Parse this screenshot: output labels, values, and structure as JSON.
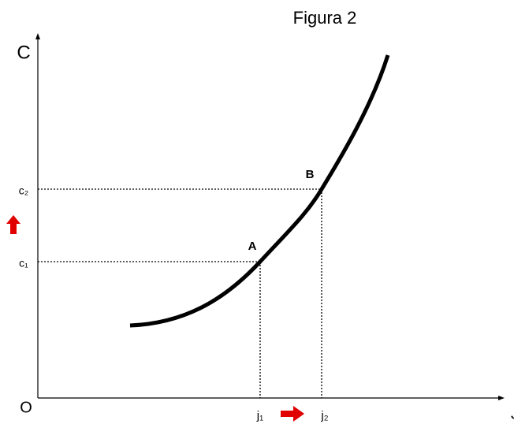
{
  "title": "Figura 2",
  "axes": {
    "y_label": "C",
    "x_label": "J",
    "origin": "O"
  },
  "points": [
    {
      "label": "A"
    },
    {
      "label": "B"
    }
  ],
  "y_ticks": [
    "c₁",
    "c₂"
  ],
  "x_ticks": [
    "j₁",
    "j₂"
  ]
}
